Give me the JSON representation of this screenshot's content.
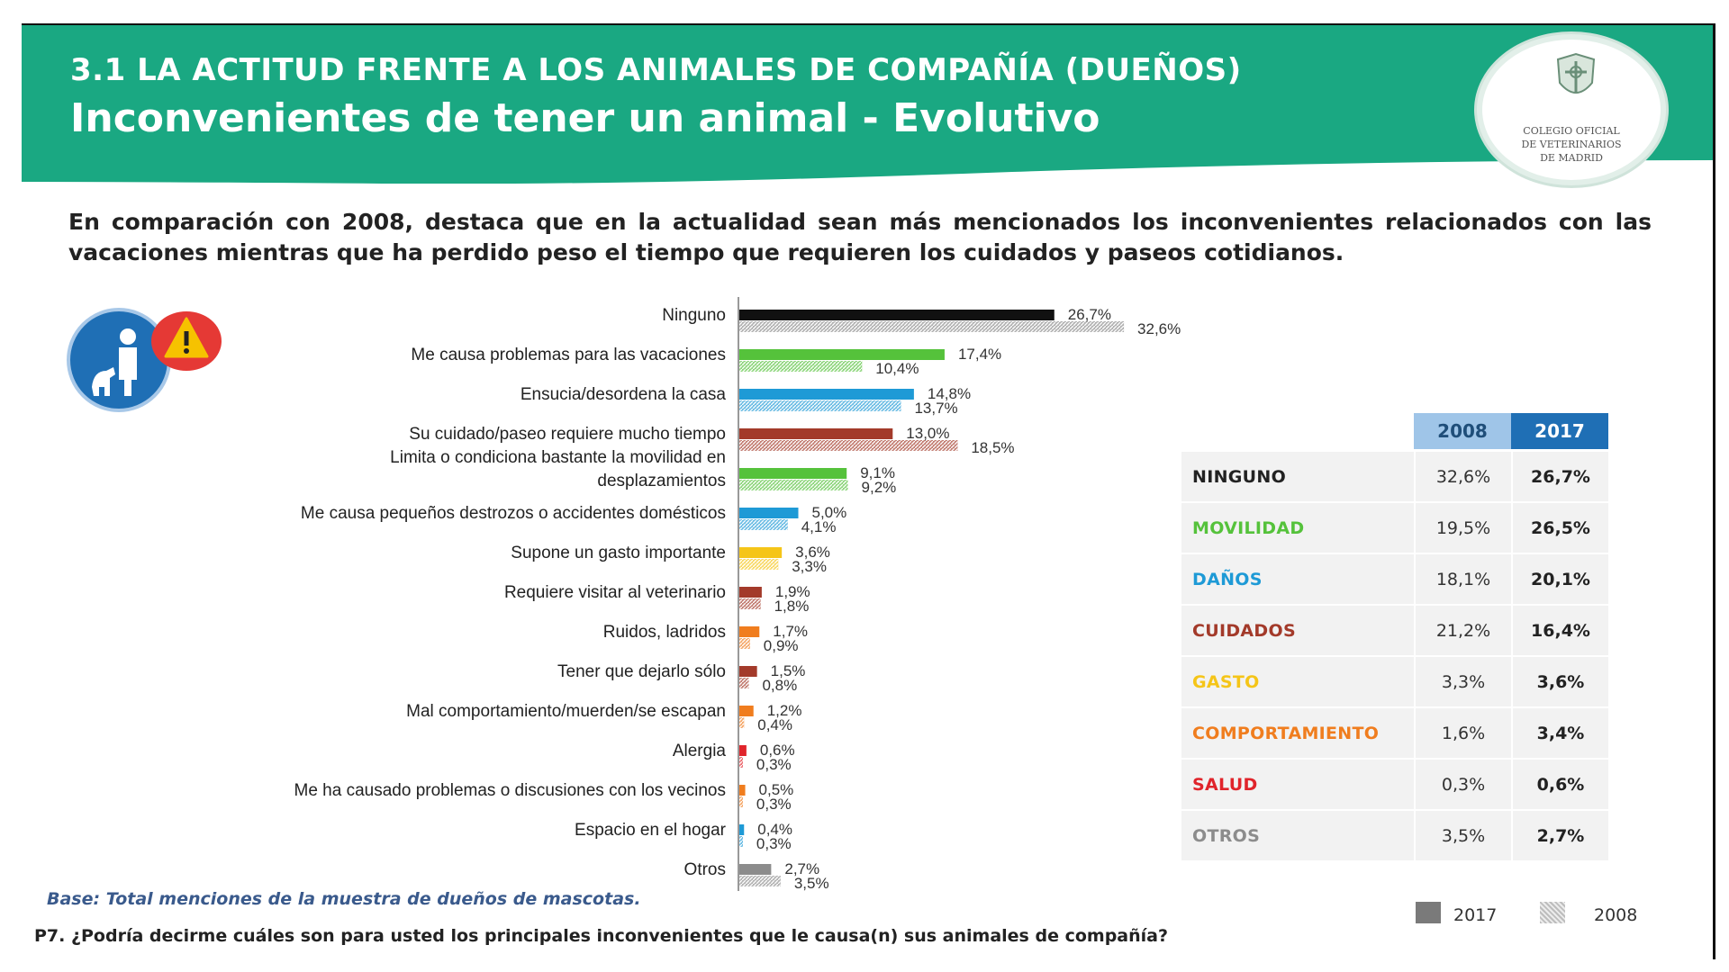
{
  "header": {
    "section_title": "3.1 LA ACTITUD FRENTE A LOS ANIMALES DE COMPAÑÍA (DUEÑOS)",
    "title": "Inconvenientes de tener un animal - Evolutivo",
    "logo_text": [
      "COLEGIO OFICIAL",
      "DE VETERINARIOS",
      "DE MADRID"
    ]
  },
  "summary": "En comparación con 2008, destaca que en la actualidad sean más mencionados los inconvenientes relacionados con las vacaciones mientras que ha perdido peso el tiempo que requieren los cuidados y paseos cotidianos.",
  "colors": {
    "brand": "#1aa882",
    "ninguno": "#111111",
    "movilidad": "#55c23b",
    "danos": "#1e9ad6",
    "cuidados": "#a33a2a",
    "gasto": "#f5c518",
    "comportamiento": "#f07d1e",
    "salud": "#e0242b",
    "otros": "#8c8c8c"
  },
  "chart_data": {
    "type": "bar",
    "orientation": "horizontal",
    "title": "Inconvenientes de tener un animal - Evolutivo",
    "value_unit": "%",
    "series_names": [
      "2017",
      "2008"
    ],
    "categories": [
      {
        "label": [
          "Ninguno"
        ],
        "v2017": 26.7,
        "v2008": 32.6,
        "label2017": "26,7%",
        "label2008": "32,6%",
        "color": "#111111",
        "color2008": "#888888"
      },
      {
        "label": [
          "Me causa problemas para las vacaciones"
        ],
        "v2017": 17.4,
        "v2008": 10.4,
        "label2017": "17,4%",
        "label2008": "10,4%",
        "color": "#55c23b"
      },
      {
        "label": [
          "Ensucia/desordena la casa"
        ],
        "v2017": 14.8,
        "v2008": 13.7,
        "label2017": "14,8%",
        "label2008": "13,7%",
        "color": "#1e9ad6"
      },
      {
        "label": [
          "Su cuidado/paseo requiere mucho tiempo"
        ],
        "v2017": 13.0,
        "v2008": 18.5,
        "label2017": "13,0%",
        "label2008": "18,5%",
        "color": "#a33a2a"
      },
      {
        "label": [
          "Limita o condiciona bastante la movilidad en",
          "desplazamientos"
        ],
        "v2017": 9.1,
        "v2008": 9.2,
        "label2017": "9,1%",
        "label2008": "9,2%",
        "color": "#55c23b"
      },
      {
        "label": [
          "Me causa pequeños destrozos o accidentes domésticos"
        ],
        "v2017": 5.0,
        "v2008": 4.1,
        "label2017": "5,0%",
        "label2008": "4,1%",
        "color": "#1e9ad6"
      },
      {
        "label": [
          "Supone un gasto importante"
        ],
        "v2017": 3.6,
        "v2008": 3.3,
        "label2017": "3,6%",
        "label2008": "3,3%",
        "color": "#f5c518"
      },
      {
        "label": [
          "Requiere visitar al veterinario"
        ],
        "v2017": 1.9,
        "v2008": 1.8,
        "label2017": "1,9%",
        "label2008": "1,8%",
        "color": "#a33a2a"
      },
      {
        "label": [
          "Ruidos, ladridos"
        ],
        "v2017": 1.7,
        "v2008": 0.9,
        "label2017": "1,7%",
        "label2008": "0,9%",
        "color": "#f07d1e"
      },
      {
        "label": [
          "Tener que dejarlo sólo"
        ],
        "v2017": 1.5,
        "v2008": 0.8,
        "label2017": "1,5%",
        "label2008": "0,8%",
        "color": "#a33a2a"
      },
      {
        "label": [
          "Mal comportamiento/muerden/se escapan"
        ],
        "v2017": 1.2,
        "v2008": 0.4,
        "label2017": "1,2%",
        "label2008": "0,4%",
        "color": "#f07d1e"
      },
      {
        "label": [
          "Alergia"
        ],
        "v2017": 0.6,
        "v2008": 0.3,
        "label2017": "0,6%",
        "label2008": "0,3%",
        "color": "#e0242b"
      },
      {
        "label": [
          "Me ha causado problemas o discusiones con los vecinos"
        ],
        "v2017": 0.5,
        "v2008": 0.3,
        "label2017": "0,5%",
        "label2008": "0,3%",
        "color": "#f07d1e"
      },
      {
        "label": [
          "Espacio en el hogar"
        ],
        "v2017": 0.4,
        "v2008": 0.3,
        "label2017": "0,4%",
        "label2008": "0,3%",
        "color": "#1e9ad6"
      },
      {
        "label": [
          "Otros"
        ],
        "v2017": 2.7,
        "v2008": 3.5,
        "label2017": "2,7%",
        "label2008": "3,5%",
        "color": "#8c8c8c"
      }
    ],
    "legend": [
      {
        "label": "2017",
        "style": "solid"
      },
      {
        "label": "2008",
        "style": "hatched"
      }
    ],
    "summary_table": {
      "headers": [
        "2008",
        "2017"
      ],
      "rows": [
        {
          "category": "NINGUNO",
          "v2008": "32,6%",
          "v2017": "26,7%",
          "color": "#222222"
        },
        {
          "category": "MOVILIDAD",
          "v2008": "19,5%",
          "v2017": "26,5%",
          "color": "#55c23b"
        },
        {
          "category": "DAÑOS",
          "v2008": "18,1%",
          "v2017": "20,1%",
          "color": "#1e9ad6"
        },
        {
          "category": "CUIDADOS",
          "v2008": "21,2%",
          "v2017": "16,4%",
          "color": "#a33a2a"
        },
        {
          "category": "GASTO",
          "v2008": "3,3%",
          "v2017": "3,6%",
          "color": "#f5c518"
        },
        {
          "category": "COMPORTAMIENTO",
          "v2008": "1,6%",
          "v2017": "3,4%",
          "color": "#f07d1e"
        },
        {
          "category": "SALUD",
          "v2008": "0,3%",
          "v2017": "0,6%",
          "color": "#e0242b"
        },
        {
          "category": "OTROS",
          "v2008": "3,5%",
          "v2017": "2,7%",
          "color": "#8c8c8c"
        }
      ]
    }
  },
  "footer": {
    "base_note": "Base: Total menciones de la muestra de dueños de mascotas.",
    "question": "P7. ¿Podría decirme cuáles son para usted los principales inconvenientes que le causa(n) sus animales de compañía?"
  }
}
